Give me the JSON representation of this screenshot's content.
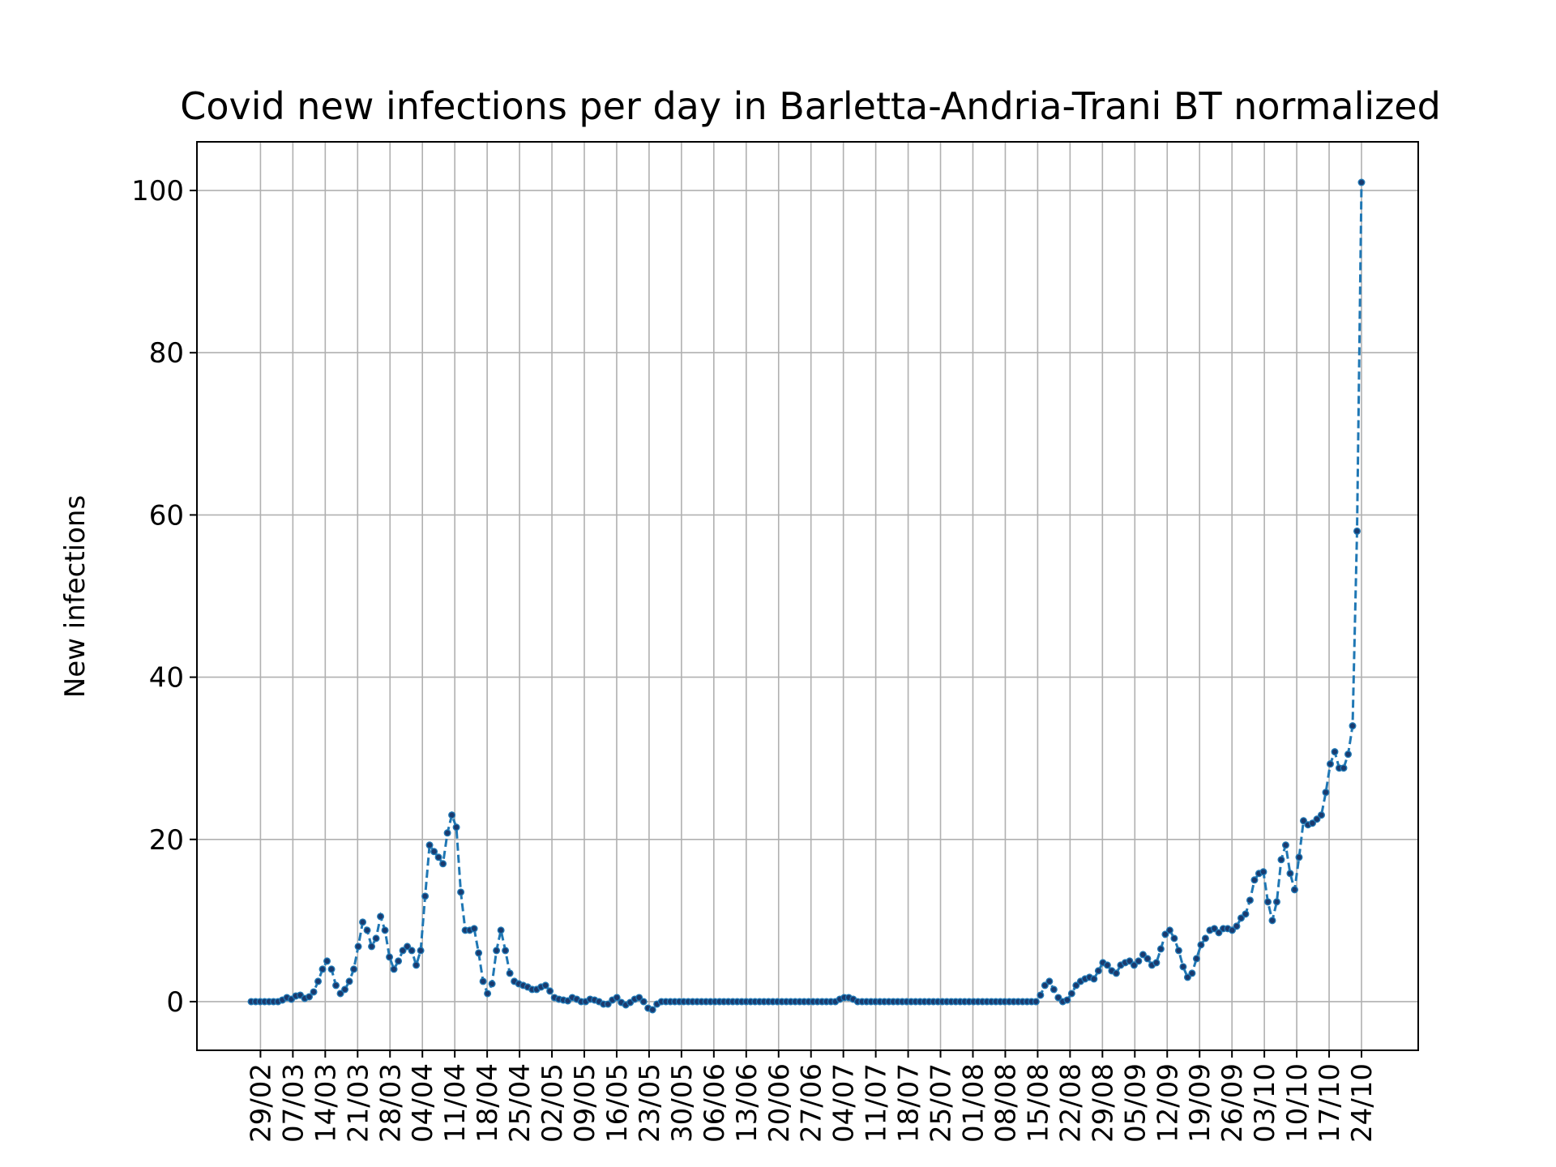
{
  "chart_data": {
    "type": "line",
    "title": "Covid new infections per day in Barletta-Andria-Trani BT normalized",
    "xlabel": "",
    "ylabel": "New infections",
    "ylim": [
      -6,
      106
    ],
    "yticks": [
      0,
      20,
      40,
      60,
      80,
      100
    ],
    "grid": true,
    "x_start": "2020-02-27",
    "x_end": "2020-10-24",
    "xticks": [
      "29/02",
      "07/03",
      "14/03",
      "21/03",
      "28/03",
      "04/04",
      "11/04",
      "18/04",
      "25/04",
      "02/05",
      "09/05",
      "16/05",
      "23/05",
      "30/05",
      "06/06",
      "13/06",
      "20/06",
      "27/06",
      "04/07",
      "11/07",
      "18/07",
      "25/07",
      "01/08",
      "08/08",
      "15/08",
      "22/08",
      "29/08",
      "05/09",
      "12/09",
      "19/09",
      "26/09",
      "03/10",
      "10/10",
      "17/10",
      "24/10"
    ],
    "series_color": "#1f77b4",
    "marker_color": "#1a3a6e",
    "series": [
      {
        "values": [
          0,
          0,
          0,
          0,
          0,
          0,
          0,
          0.2,
          0.5,
          0.3,
          0.7,
          0.8,
          0.4,
          0.6,
          1.2,
          2.5,
          4.0,
          5.0,
          4.0,
          2.0,
          1.0,
          1.5,
          2.5,
          4.0,
          6.8,
          9.8,
          8.8,
          6.8,
          7.8,
          10.5,
          8.8,
          5.5,
          4.0,
          5.0,
          6.3,
          6.8,
          6.3,
          4.5,
          6.3,
          13.0,
          19.3,
          18.5,
          17.8,
          17.0,
          20.8,
          23.0,
          21.5,
          13.5,
          8.8,
          8.8,
          9.0,
          6.0,
          2.5,
          1.0,
          2.2,
          6.3,
          8.8,
          6.3,
          3.5,
          2.5,
          2.2,
          2.0,
          1.8,
          1.5,
          1.5,
          1.8,
          2.0,
          1.3,
          0.5,
          0.3,
          0.2,
          0.1,
          0.5,
          0.3,
          0.0,
          0.0,
          0.3,
          0.2,
          0.0,
          -0.3,
          -0.3,
          0.2,
          0.5,
          -0.1,
          -0.4,
          -0.1,
          0.3,
          0.5,
          0.0,
          -0.8,
          -1.0,
          -0.3,
          0,
          0,
          0,
          0,
          0,
          0,
          0,
          0,
          0,
          0,
          0,
          0,
          0,
          0,
          0,
          0,
          0,
          0,
          0,
          0,
          0,
          0,
          0,
          0,
          0,
          0,
          0,
          0,
          0,
          0,
          0,
          0,
          0,
          0,
          0,
          0,
          0,
          0,
          0,
          0,
          0.3,
          0.5,
          0.5,
          0.3,
          0,
          0,
          0,
          0,
          0,
          0,
          0,
          0,
          0,
          0,
          0,
          0,
          0,
          0,
          0,
          0,
          0,
          0,
          0,
          0,
          0,
          0,
          0,
          0,
          0,
          0,
          0,
          0,
          0,
          0,
          0,
          0,
          0,
          0,
          0,
          0,
          0,
          0,
          0,
          0,
          0,
          0.8,
          2.0,
          2.5,
          1.5,
          0.5,
          0.0,
          0.2,
          1.0,
          2.0,
          2.5,
          2.8,
          3.0,
          2.8,
          3.8,
          4.8,
          4.5,
          3.8,
          3.5,
          4.5,
          4.8,
          5.0,
          4.5,
          5.0,
          5.8,
          5.3,
          4.5,
          4.8,
          6.5,
          8.3,
          8.8,
          7.8,
          6.3,
          4.3,
          3.0,
          3.5,
          5.3,
          7.0,
          7.8,
          8.8,
          9.0,
          8.5,
          9.0,
          9.0,
          8.8,
          9.3,
          10.3,
          10.8,
          12.5,
          15.0,
          15.8,
          16.0,
          12.3,
          10.0,
          12.3,
          17.5,
          19.3,
          15.8,
          13.8,
          17.8,
          22.3,
          21.8,
          22.0,
          22.5,
          23.0,
          25.8,
          29.3,
          30.8,
          28.8,
          28.8,
          30.5,
          34.0,
          58.0,
          101.0
        ]
      }
    ]
  }
}
